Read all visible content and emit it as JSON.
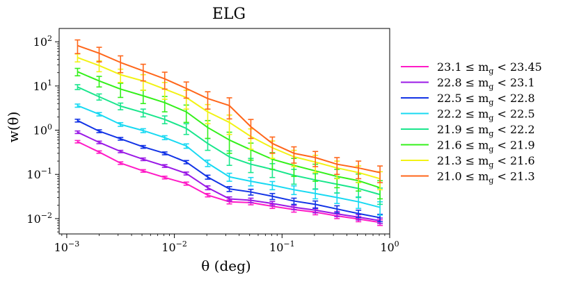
{
  "chart_data": {
    "type": "line",
    "title": "ELG",
    "xlabel": "θ  (deg)",
    "ylabel": "w(θ)",
    "xscale": "log",
    "yscale": "log",
    "xlim": [
      0.00085,
      1.0
    ],
    "ylim": [
      0.0045,
      200
    ],
    "x_ticks": [
      {
        "value": 0.001,
        "base": "10",
        "exp": "−3"
      },
      {
        "value": 0.01,
        "base": "10",
        "exp": "−2"
      },
      {
        "value": 0.1,
        "base": "10",
        "exp": "−1"
      },
      {
        "value": 1,
        "base": "10",
        "exp": "0"
      }
    ],
    "y_ticks": [
      {
        "value": 0.01,
        "base": "10",
        "exp": "−2"
      },
      {
        "value": 0.1,
        "base": "10",
        "exp": "−1"
      },
      {
        "value": 1,
        "base": "10",
        "exp": "0"
      },
      {
        "value": 10,
        "base": "10",
        "exp": "1"
      },
      {
        "value": 100,
        "base": "10",
        "exp": "2"
      }
    ],
    "x": [
      0.00126,
      0.002,
      0.00316,
      0.00513,
      0.00813,
      0.0129,
      0.0204,
      0.0324,
      0.0513,
      0.0813,
      0.129,
      0.204,
      0.324,
      0.513,
      0.813
    ],
    "legend_position": "right",
    "series": [
      {
        "name": "23.1 ≤ m_g < 23.45",
        "label": {
          "a": "23.1 ≤ m",
          "sub": "g",
          "b": " < 23.45"
        },
        "color": "#ff1ac6",
        "values": [
          0.55,
          0.32,
          0.18,
          0.12,
          0.085,
          0.062,
          0.034,
          0.024,
          0.023,
          0.019,
          0.016,
          0.014,
          0.0115,
          0.0098,
          0.0082
        ],
        "errors": [
          0.035,
          0.02,
          0.012,
          0.008,
          0.006,
          0.005,
          0.003,
          0.0025,
          0.0025,
          0.002,
          0.002,
          0.0018,
          0.0015,
          0.0013,
          0.0012
        ]
      },
      {
        "name": "22.8 ≤ m_g < 23.1",
        "label": {
          "a": "22.8 ≤ m",
          "sub": "g",
          "b": " < 23.1"
        },
        "color": "#9a19e6",
        "values": [
          0.9,
          0.53,
          0.33,
          0.22,
          0.155,
          0.105,
          0.05,
          0.028,
          0.026,
          0.022,
          0.018,
          0.0155,
          0.0128,
          0.0108,
          0.009
        ],
        "errors": [
          0.06,
          0.035,
          0.02,
          0.015,
          0.011,
          0.008,
          0.005,
          0.003,
          0.003,
          0.0025,
          0.002,
          0.002,
          0.0017,
          0.0015,
          0.0013
        ]
      },
      {
        "name": "22.5 ≤ m_g < 22.8",
        "label": {
          "a": "22.5 ≤ m",
          "sub": "g",
          "b": " < 22.8"
        },
        "color": "#1233e6",
        "values": [
          1.65,
          0.95,
          0.64,
          0.42,
          0.3,
          0.19,
          0.087,
          0.047,
          0.04,
          0.032,
          0.025,
          0.021,
          0.0165,
          0.013,
          0.0105
        ],
        "errors": [
          0.12,
          0.07,
          0.045,
          0.03,
          0.022,
          0.016,
          0.009,
          0.006,
          0.006,
          0.005,
          0.004,
          0.004,
          0.003,
          0.0025,
          0.002
        ]
      },
      {
        "name": "22.2 ≤ m_g < 22.5",
        "label": {
          "a": "22.2 ≤ m",
          "sub": "g",
          "b": " < 22.5"
        },
        "color": "#18d9f2",
        "values": [
          3.6,
          2.3,
          1.35,
          0.98,
          0.68,
          0.44,
          0.18,
          0.088,
          0.07,
          0.057,
          0.045,
          0.037,
          0.03,
          0.024,
          0.018
        ],
        "errors": [
          0.3,
          0.2,
          0.13,
          0.1,
          0.07,
          0.05,
          0.03,
          0.018,
          0.015,
          0.012,
          0.01,
          0.009,
          0.008,
          0.007,
          0.006
        ]
      },
      {
        "name": "21.9 ≤ m_g < 22.2",
        "label": {
          "a": "21.9 ≤ m",
          "sub": "g",
          "b": " < 22.2"
        },
        "color": "#19e68c",
        "values": [
          9.5,
          5.7,
          3.5,
          2.5,
          1.75,
          1.1,
          0.5,
          0.25,
          0.17,
          0.13,
          0.095,
          0.075,
          0.06,
          0.048,
          0.035
        ],
        "errors": [
          1.2,
          0.9,
          0.6,
          0.5,
          0.35,
          0.3,
          0.15,
          0.09,
          0.06,
          0.045,
          0.035,
          0.028,
          0.022,
          0.018,
          0.014
        ]
      },
      {
        "name": "21.6 ≤ m_g < 21.9",
        "label": {
          "a": "21.6 ≤ m",
          "sub": "g",
          "b": " < 21.9"
        },
        "color": "#33f01a",
        "values": [
          21,
          13,
          8.5,
          6.0,
          4.2,
          2.6,
          1.15,
          0.6,
          0.36,
          0.22,
          0.16,
          0.12,
          0.09,
          0.072,
          0.05
        ],
        "errors": [
          4,
          3.5,
          3,
          2,
          1.6,
          1.1,
          0.5,
          0.3,
          0.15,
          0.09,
          0.07,
          0.05,
          0.04,
          0.03,
          0.022
        ]
      },
      {
        "name": "21.3 ≤ m_g < 21.6",
        "label": {
          "a": "21.3 ≤ m",
          "sub": "g",
          "b": " < 21.6"
        },
        "color": "#f2f214",
        "values": [
          44,
          29,
          18,
          13,
          8.5,
          5.5,
          2.6,
          1.5,
          0.72,
          0.4,
          0.25,
          0.19,
          0.14,
          0.11,
          0.08
        ],
        "errors": [
          9,
          8,
          6,
          5,
          3.5,
          2.5,
          1.2,
          0.7,
          0.35,
          0.17,
          0.1,
          0.08,
          0.06,
          0.045,
          0.035
        ]
      },
      {
        "name": "21.0 ≤ m_g < 21.3",
        "label": {
          "a": "21.0 ≤ m",
          "sub": "g",
          "b": " < 21.3"
        },
        "color": "#ff661a",
        "values": [
          82,
          55,
          34,
          22,
          14.5,
          8.8,
          5.2,
          3.6,
          1.2,
          0.5,
          0.3,
          0.24,
          0.17,
          0.14,
          0.11
        ],
        "errors": [
          28,
          20,
          14,
          9,
          6,
          3.5,
          2.2,
          1.8,
          0.55,
          0.2,
          0.12,
          0.09,
          0.07,
          0.06,
          0.045
        ]
      }
    ]
  }
}
